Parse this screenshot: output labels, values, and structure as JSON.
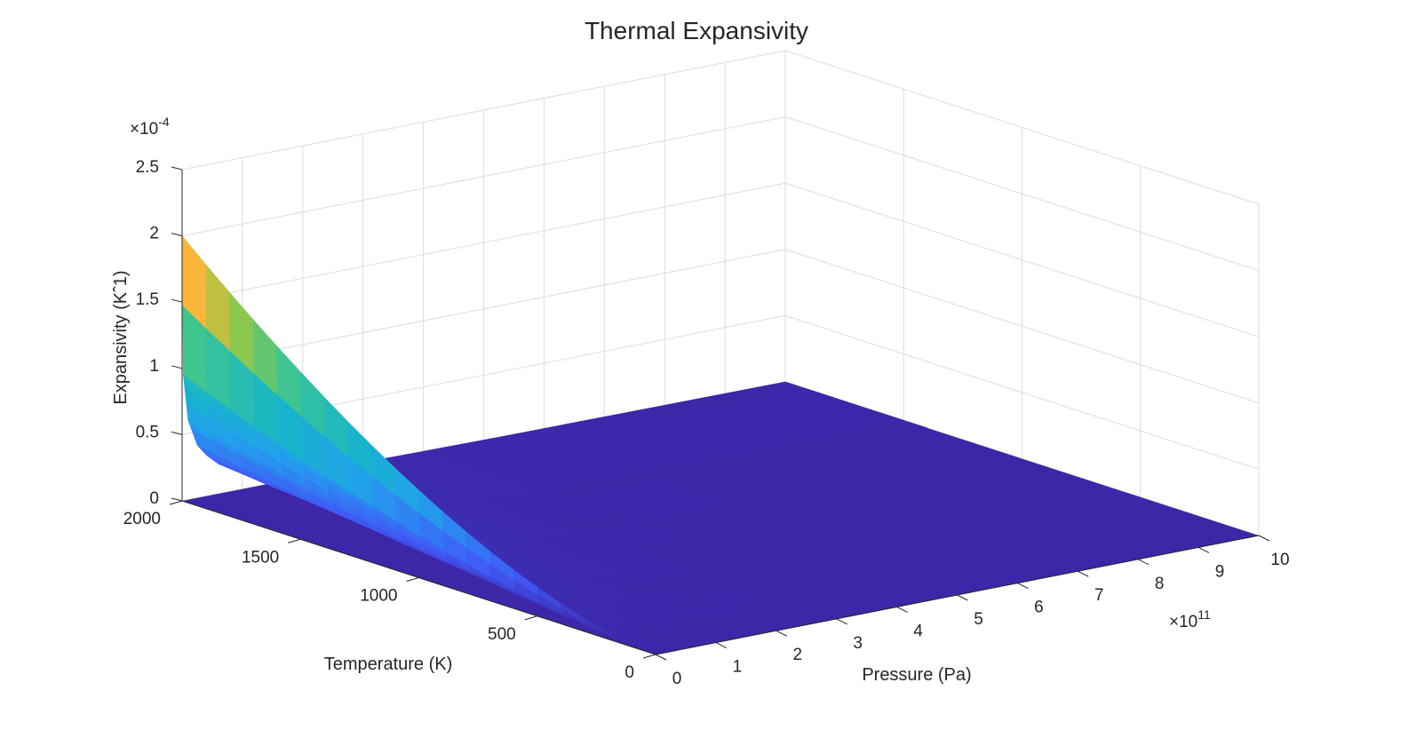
{
  "chart_data": {
    "type": "surface",
    "title": "Thermal Expansivity",
    "xlabel": "Pressure (Pa)",
    "ylabel": "Temperature (K)",
    "zlabel": "Expansivity (K^-1)",
    "x_exponent_base": "×10",
    "x_exponent_power": "11",
    "z_exponent_base": "×10",
    "z_exponent_power": "-4",
    "x_ticks": [
      "0",
      "1",
      "2",
      "3",
      "4",
      "5",
      "6",
      "7",
      "8",
      "9",
      "10"
    ],
    "y_ticks": [
      "0",
      "500",
      "1000",
      "1500",
      "2000"
    ],
    "z_ticks": [
      "0",
      "0.5",
      "1",
      "1.5",
      "2",
      "2.5"
    ],
    "xlim": [
      0,
      10
    ],
    "ylim": [
      0,
      2000
    ],
    "zlim": [
      0,
      2.5
    ],
    "grid": true,
    "colormap": "parula",
    "colors": {
      "low": "#3d26a8",
      "mid": "#17b6c8",
      "high": "#f9fb0e",
      "edge": "#ffb23a"
    },
    "series": [
      {
        "pressure_e11": [
          0,
          0.02,
          0.1,
          0.25,
          0.5,
          1,
          2,
          3,
          5,
          10
        ],
        "temperature_K": 2000,
        "expansivity_e4": [
          2.0,
          0.95,
          0.6,
          0.4,
          0.25,
          0.13,
          0.05,
          0.02,
          0.01,
          0.0
        ]
      },
      {
        "pressure_e11": [
          0,
          0.02,
          0.1,
          0.25,
          0.5,
          1,
          2,
          3,
          5,
          10
        ],
        "temperature_K": 1000,
        "expansivity_e4": [
          1.0,
          0.55,
          0.35,
          0.22,
          0.14,
          0.07,
          0.03,
          0.01,
          0.0,
          0.0
        ]
      },
      {
        "pressure_e11": [
          0,
          0.02,
          0.1,
          0.25,
          0.5,
          1,
          2,
          3,
          5,
          10
        ],
        "temperature_K": 0,
        "expansivity_e4": [
          0.0,
          0.0,
          0.0,
          0.0,
          0.0,
          0.0,
          0.0,
          0.0,
          0.0,
          0.0
        ]
      }
    ]
  }
}
